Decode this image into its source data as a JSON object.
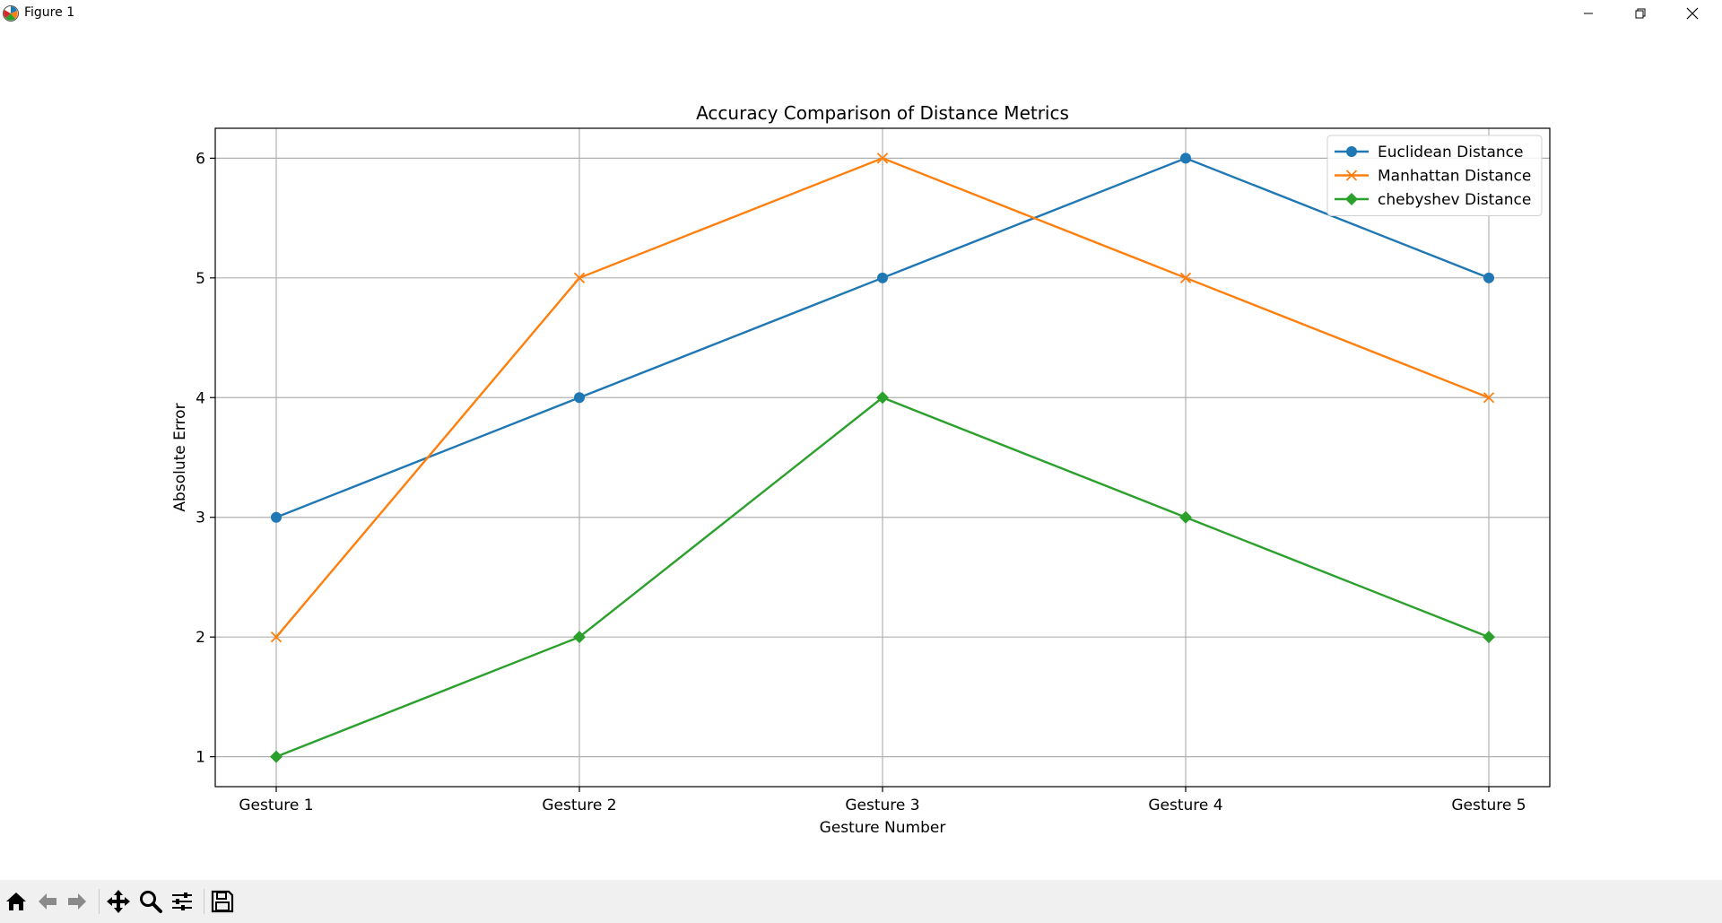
{
  "window": {
    "title": "Figure 1",
    "app_icon": "matplotlib-icon",
    "controls": [
      "minimize-icon",
      "restore-icon",
      "close-icon"
    ]
  },
  "toolbar": {
    "buttons": [
      {
        "name": "home",
        "icon": "home-icon"
      },
      {
        "name": "back",
        "icon": "arrow-left-icon"
      },
      {
        "name": "forward",
        "icon": "arrow-right-icon"
      },
      {
        "name": "pan",
        "icon": "move-icon"
      },
      {
        "name": "zoom",
        "icon": "magnifier-icon"
      },
      {
        "name": "configure-subplots",
        "icon": "sliders-icon"
      },
      {
        "name": "save",
        "icon": "floppy-icon"
      }
    ]
  },
  "chart_data": {
    "type": "line",
    "title": "Accuracy Comparison of Distance Metrics",
    "xlabel": "Gesture Number",
    "ylabel": "Absolute Error",
    "categories": [
      "Gesture 1",
      "Gesture 2",
      "Gesture 3",
      "Gesture 4",
      "Gesture 5"
    ],
    "yticks": [
      1,
      2,
      3,
      4,
      5,
      6
    ],
    "ylim": [
      0.75,
      6.25
    ],
    "grid": true,
    "legend_position": "top-right",
    "series": [
      {
        "name": "Euclidean Distance",
        "values": [
          3,
          4,
          5,
          6,
          5
        ],
        "color": "#1f77b4",
        "marker": "circle"
      },
      {
        "name": "Manhattan Distance",
        "values": [
          2,
          5,
          6,
          5,
          4
        ],
        "color": "#ff7f0e",
        "marker": "x"
      },
      {
        "name": "chebyshev Distance",
        "values": [
          1,
          2,
          4,
          3,
          2
        ],
        "color": "#2ca02c",
        "marker": "diamond"
      }
    ]
  }
}
